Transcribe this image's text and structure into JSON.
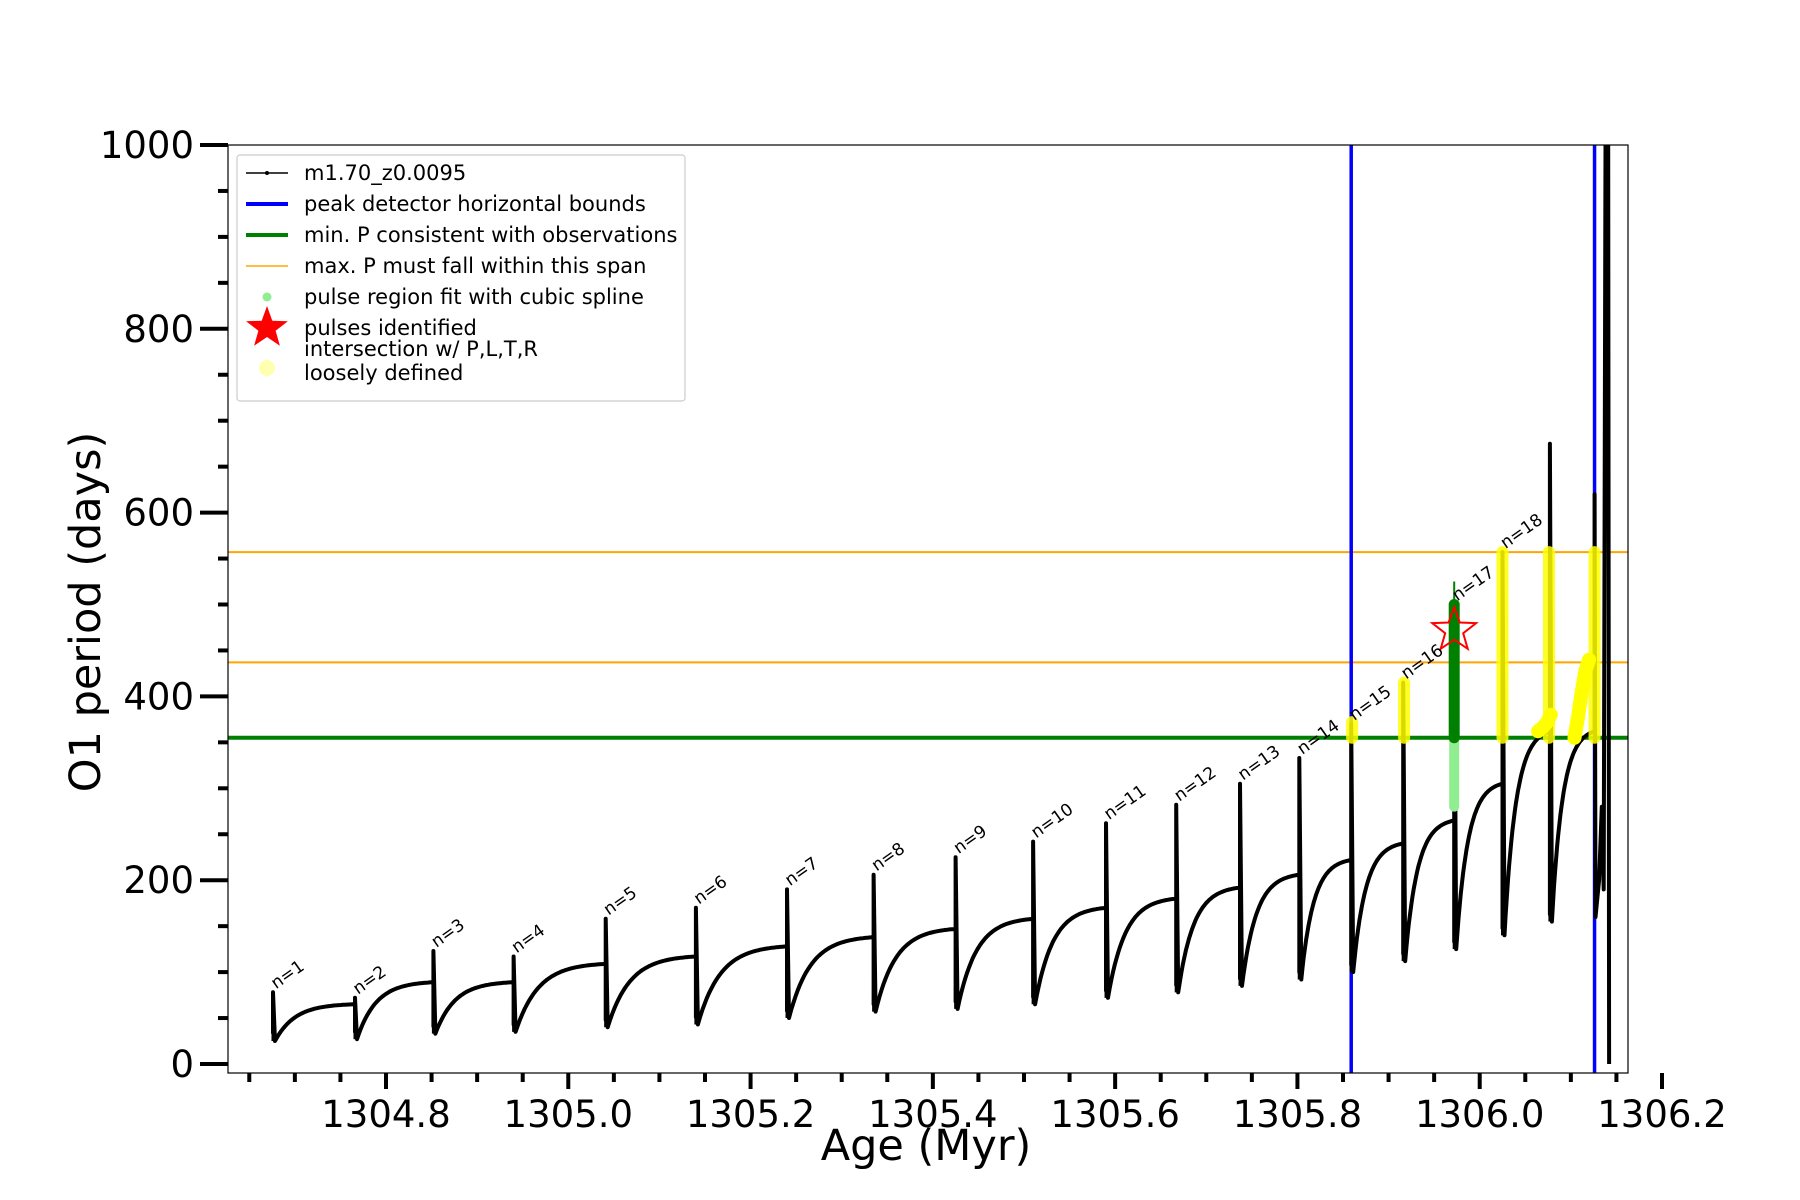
{
  "chart_data": {
    "type": "line",
    "xlabel": "Age (Myr)",
    "ylabel": "O1 period (days)",
    "xlim": [
      1304.6,
      1306.2
    ],
    "ylim": [
      0,
      1000
    ],
    "x_ticks": [
      1304.8,
      1305.0,
      1305.2,
      1305.4,
      1305.6,
      1305.8,
      1306.0,
      1306.2
    ],
    "x_tick_labels": [
      "1304.8",
      "1305.0",
      "1305.2",
      "1305.4",
      "1305.6",
      "1305.8",
      "1306.0",
      "1306.2"
    ],
    "y_ticks": [
      0,
      200,
      400,
      600,
      800,
      1000
    ],
    "y_tick_labels": [
      "0",
      "200",
      "400",
      "600",
      "800",
      "1000"
    ],
    "grid": false,
    "legend_placement": "top-left",
    "legend": [
      {
        "label": "m1.70_z0.0095",
        "marker": "line-dot",
        "color": "#000000"
      },
      {
        "label": "peak detector horizontal bounds",
        "marker": "line",
        "color": "#0000ff"
      },
      {
        "label": "min. P consistent with observations",
        "marker": "line",
        "color": "#008000"
      },
      {
        "label": "max. P must fall within this span",
        "marker": "thin-line",
        "color": "#ffa500"
      },
      {
        "label": "pulse region fit with cubic spline",
        "marker": "dot",
        "color": "#90ee90"
      },
      {
        "label": "pulses identified",
        "marker": "star",
        "color": "#ff0000"
      },
      {
        "label": "intersection w/ P,L,T,R\nloosely defined",
        "marker": "dot",
        "color": "#ffffb0"
      }
    ],
    "vlines": [
      1305.859,
      1306.126
    ],
    "min_period_line": 355,
    "max_period_span": [
      437,
      557
    ],
    "pulses": [
      {
        "label": "n=1",
        "x": 1304.676,
        "base": 25,
        "peak": 78,
        "end_value": 65,
        "next_x": 1304.766
      },
      {
        "label": "n=2",
        "x": 1304.766,
        "base": 27,
        "peak": 72,
        "end_value": 89,
        "next_x": 1304.852
      },
      {
        "label": "n=3",
        "x": 1304.852,
        "base": 33,
        "peak": 123,
        "end_value": 89,
        "next_x": 1304.94
      },
      {
        "label": "n=4",
        "x": 1304.94,
        "base": 35,
        "peak": 117,
        "end_value": 109,
        "next_x": 1305.041
      },
      {
        "label": "n=5",
        "x": 1305.041,
        "base": 40,
        "peak": 158,
        "end_value": 117,
        "next_x": 1305.14
      },
      {
        "label": "n=6",
        "x": 1305.14,
        "base": 43,
        "peak": 170,
        "end_value": 128,
        "next_x": 1305.24
      },
      {
        "label": "n=7",
        "x": 1305.24,
        "base": 50,
        "peak": 190,
        "end_value": 138,
        "next_x": 1305.335
      },
      {
        "label": "n=8",
        "x": 1305.335,
        "base": 57,
        "peak": 206,
        "end_value": 147,
        "next_x": 1305.425
      },
      {
        "label": "n=9",
        "x": 1305.425,
        "base": 60,
        "peak": 225,
        "end_value": 158,
        "next_x": 1305.51
      },
      {
        "label": "n=10",
        "x": 1305.51,
        "base": 65,
        "peak": 242,
        "end_value": 170,
        "next_x": 1305.59
      },
      {
        "label": "n=11",
        "x": 1305.59,
        "base": 72,
        "peak": 262,
        "end_value": 180,
        "next_x": 1305.667
      },
      {
        "label": "n=12",
        "x": 1305.667,
        "base": 78,
        "peak": 282,
        "end_value": 192,
        "next_x": 1305.737
      },
      {
        "label": "n=13",
        "x": 1305.737,
        "base": 85,
        "peak": 305,
        "end_value": 206,
        "next_x": 1305.802
      },
      {
        "label": "n=14",
        "x": 1305.802,
        "base": 92,
        "peak": 333,
        "end_value": 222,
        "next_x": 1305.859
      },
      {
        "label": "n=15",
        "x": 1305.859,
        "base": 100,
        "peak": 370,
        "end_value": 240,
        "next_x": 1305.916
      },
      {
        "label": "n=16",
        "x": 1305.916,
        "base": 112,
        "peak": 415,
        "end_value": 265,
        "next_x": 1305.972
      },
      {
        "label": "n=17",
        "x": 1305.972,
        "base": 125,
        "peak": 500,
        "end_value": 305,
        "next_x": 1306.025
      },
      {
        "label": "n=18",
        "x": 1306.025,
        "base": 140,
        "peak": 557,
        "end_value": 362,
        "next_x": 1306.077
      },
      {
        "label": "",
        "x": 1306.077,
        "base": 155,
        "peak": 675,
        "end_value": 362,
        "next_x": 1306.126
      }
    ],
    "tail_points": [
      {
        "x": 1306.126,
        "y": 620
      },
      {
        "x": 1306.127,
        "y": 160
      },
      {
        "x": 1306.131,
        "y": 200
      },
      {
        "x": 1306.134,
        "y": 280
      },
      {
        "x": 1306.136,
        "y": 190
      },
      {
        "x": 1306.138,
        "y": 1000
      },
      {
        "x": 1306.141,
        "y": 1000
      },
      {
        "x": 1306.142,
        "y": 0
      }
    ],
    "identified_pulse": {
      "x": 1305.972,
      "y": 472
    },
    "green_fit_region": {
      "x": 1305.972,
      "y_range": [
        280,
        500
      ]
    },
    "loose_regions": [
      {
        "x": 1305.86,
        "y_range": [
          355,
          372
        ]
      },
      {
        "x": 1305.917,
        "y_range": [
          355,
          415
        ]
      },
      {
        "x": 1306.025,
        "y_range": [
          355,
          557
        ]
      },
      {
        "x": 1306.076,
        "y_range": [
          355,
          557
        ]
      },
      {
        "x": 1306.126,
        "y_range": [
          355,
          557
        ]
      }
    ],
    "loose_curves": [
      {
        "x": [
          1306.064,
          1306.069,
          1306.074,
          1306.078
        ],
        "y": [
          362,
          366,
          372,
          380
        ]
      },
      {
        "x": [
          1306.104,
          1306.108,
          1306.112,
          1306.116,
          1306.12
        ],
        "y": [
          355,
          378,
          405,
          428,
          440
        ]
      }
    ]
  }
}
